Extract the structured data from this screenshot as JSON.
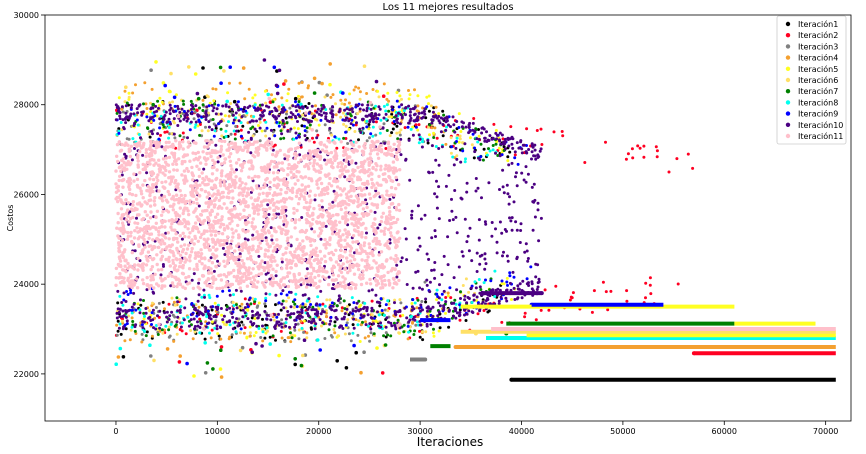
{
  "chart_data": {
    "type": "scatter",
    "title": "Los 11 mejores resultados",
    "xlabel": "Iteraciones",
    "ylabel": "Costos",
    "xlim": [
      -7000,
      72500
    ],
    "ylim": [
      20950,
      30000
    ],
    "xticks": [
      0,
      10000,
      20000,
      30000,
      40000,
      50000,
      60000,
      70000
    ],
    "yticks": [
      22000,
      24000,
      26000,
      28000,
      30000
    ],
    "xtick_labels": [
      "0",
      "10000",
      "20000",
      "30000",
      "40000",
      "50000",
      "60000",
      "70000"
    ],
    "ytick_labels": [
      "22000",
      "24000",
      "26000",
      "28000",
      "30000"
    ],
    "grid": false,
    "legend_position": "top-right",
    "series": [
      {
        "name": "Iteración1",
        "color": "#000000",
        "end_x": 39000,
        "best": 21870,
        "band": [
          23000,
          27800
        ]
      },
      {
        "name": "Iteración2",
        "color": "#ff0022",
        "end_x": 57000,
        "best": 22460,
        "band": [
          23100,
          27600
        ]
      },
      {
        "name": "Iteración3",
        "color": "#808080",
        "end_x": 30500,
        "best": 22320,
        "band": [
          23000,
          27700
        ]
      },
      {
        "name": "Iteración4",
        "color": "#f4a030",
        "end_x": 33500,
        "best": 22600,
        "band": [
          23000,
          28200
        ]
      },
      {
        "name": "Iteración5",
        "color": "#ffff22",
        "end_x": 39500,
        "best": 22800,
        "band": [
          23000,
          28000
        ]
      },
      {
        "name": "Iteración6",
        "color": "#ffe066",
        "end_x": 35500,
        "best": 22900,
        "band": [
          23100,
          27900
        ]
      },
      {
        "name": "Iteración7",
        "color": "#008000",
        "end_x": 38500,
        "best": 22900,
        "band": [
          23100,
          27800
        ]
      },
      {
        "name": "Iteración8",
        "color": "#00ffee",
        "end_x": 37500,
        "best": 22800,
        "band": [
          23200,
          27700
        ]
      },
      {
        "name": "Iteración9",
        "color": "#0000ff",
        "end_x": 41000,
        "best": 23540,
        "band": [
          23300,
          27800
        ]
      },
      {
        "name": "Iteración10",
        "color": "#4b0082",
        "end_x": 42000,
        "best": 23800,
        "band": [
          23300,
          28000
        ]
      },
      {
        "name": "Iteración11",
        "color": "#ffc0cb",
        "end_x": 28000,
        "best": 23100,
        "band": [
          23900,
          27200
        ]
      }
    ],
    "final_best_lines": [
      {
        "series": "Iteración1",
        "x": [
          39000,
          71000
        ],
        "y": 21870
      },
      {
        "series": "Iteración2",
        "x": [
          57000,
          71000
        ],
        "y": 22460
      },
      {
        "series": "Iteración4",
        "x": [
          33500,
          71000
        ],
        "y": 22600
      },
      {
        "series": "Iteración3",
        "x": [
          29000,
          30500
        ],
        "y": 22320
      },
      {
        "series": "Iteración7",
        "x": [
          31000,
          33000
        ],
        "y": 22620
      },
      {
        "series": "Iteración8",
        "x": [
          36500,
          71000
        ],
        "y": 22800
      },
      {
        "series": "Iteración5",
        "x": [
          40500,
          71000
        ],
        "y": 22860
      },
      {
        "series": "Iteración6",
        "x": [
          34000,
          71000
        ],
        "y": 22940
      },
      {
        "series": "Iteración11",
        "x": [
          37000,
          71000
        ],
        "y": 23000
      },
      {
        "series": "Iteración7",
        "x": [
          38500,
          61000
        ],
        "y": 23120
      },
      {
        "series": "Iteración5",
        "x": [
          61000,
          69000
        ],
        "y": 23120
      },
      {
        "series": "Iteración9",
        "x": [
          30000,
          33000
        ],
        "y": 23200
      },
      {
        "series": "Iteración5",
        "x": [
          34000,
          61000
        ],
        "y": 23500
      },
      {
        "series": "Iteración9",
        "x": [
          41000,
          54000
        ],
        "y": 23540
      },
      {
        "series": "Iteración10",
        "x": [
          36000,
          42000
        ],
        "y": 23800
      }
    ]
  }
}
